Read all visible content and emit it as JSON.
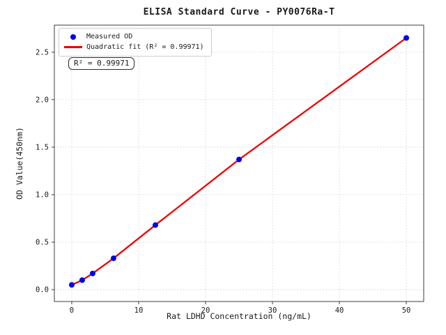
{
  "chart_data": {
    "type": "scatter",
    "title": "ELISA Standard Curve - PY0076Ra-T",
    "xlabel": "Rat LDHD Concentration (ng/mL)",
    "ylabel": "OD Value(450nm)",
    "xlim": [
      -2.6,
      52.6
    ],
    "ylim": [
      -0.125,
      2.785
    ],
    "xticks": [
      0,
      10,
      20,
      30,
      40,
      50
    ],
    "xtick_labels": [
      "0",
      "10",
      "20",
      "30",
      "40",
      "50"
    ],
    "yticks": [
      0.0,
      0.5,
      1.0,
      1.5,
      2.0,
      2.5
    ],
    "ytick_labels": [
      "0.0",
      "0.5",
      "1.0",
      "1.5",
      "2.0",
      "2.5"
    ],
    "grid": true,
    "grid_style": "dotted",
    "legend_position": "upper-left",
    "series": [
      {
        "name": "Measured OD",
        "type": "scatter",
        "color": "#0000ee",
        "points": [
          {
            "x": 0,
            "y": 0.05
          },
          {
            "x": 1.56,
            "y": 0.1
          },
          {
            "x": 3.12,
            "y": 0.17
          },
          {
            "x": 6.25,
            "y": 0.33
          },
          {
            "x": 12.5,
            "y": 0.68
          },
          {
            "x": 25,
            "y": 1.37
          },
          {
            "x": 50,
            "y": 2.65
          }
        ]
      },
      {
        "name": "Quadratic fit (R² = 0.99971)",
        "type": "line",
        "color": "#ee0000",
        "r_squared": 0.99971
      }
    ]
  },
  "legend": {
    "items": [
      {
        "label": "Measured OD",
        "marker": "dot",
        "color": "#0000ee"
      },
      {
        "label": "Quadratic fit (R² = 0.99971)",
        "marker": "line",
        "color": "#ee0000"
      }
    ]
  },
  "annotation": {
    "r2_text": "R² = 0.99971"
  }
}
